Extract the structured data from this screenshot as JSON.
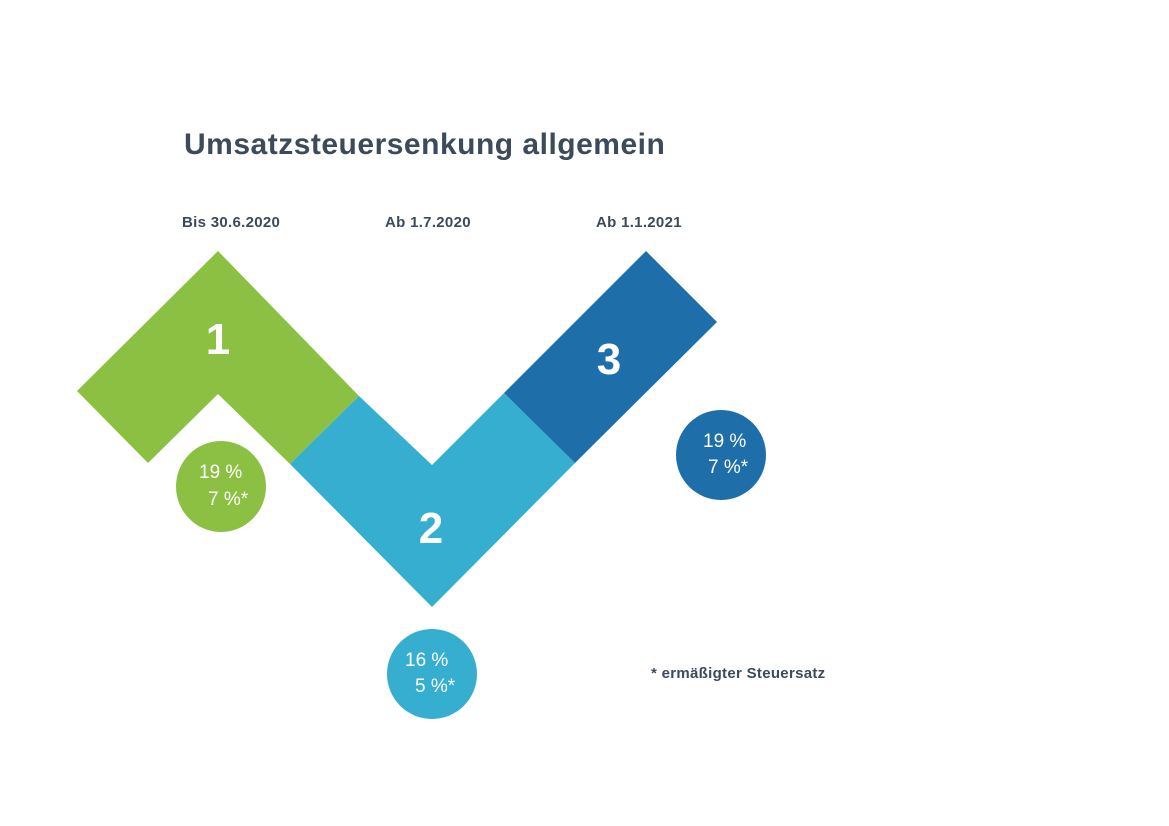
{
  "title": "Umsatzsteuersenkung allgemein",
  "periods": [
    {
      "label": "Bis 30.6.2020",
      "number": "1",
      "rate_standard": "19 %",
      "rate_reduced": "7 %*",
      "color": "#8bc043"
    },
    {
      "label": "Ab 1.7.2020",
      "number": "2",
      "rate_standard": "16 %",
      "rate_reduced": "5 %*",
      "color": "#36aecf"
    },
    {
      "label": "Ab 1.1.2021",
      "number": "3",
      "rate_standard": "19 %",
      "rate_reduced": "7 %*",
      "color": "#1e6ea9"
    }
  ],
  "footnote": "* ermäßigter Steuersatz"
}
